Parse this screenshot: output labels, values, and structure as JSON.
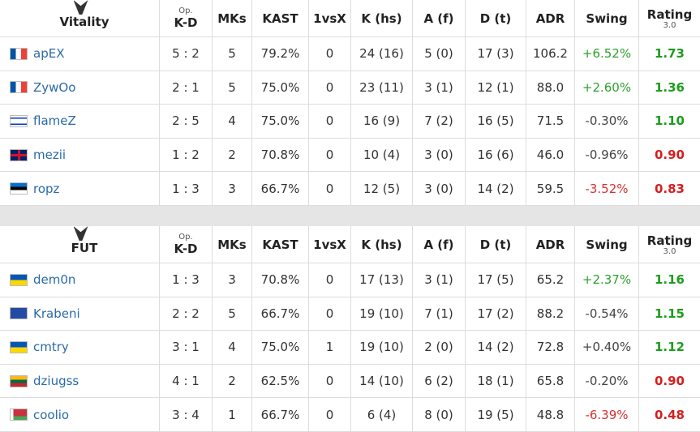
{
  "tables": [
    {
      "team": "Vitality",
      "columns": [
        {
          "label": "K-D",
          "note": "Op."
        },
        {
          "label": "MKs"
        },
        {
          "label": "KAST"
        },
        {
          "label": "1vsX"
        },
        {
          "label": "K (hs)"
        },
        {
          "label": "A (f)"
        },
        {
          "label": "D (t)"
        },
        {
          "label": "ADR"
        },
        {
          "label": "Swing"
        },
        {
          "label": "Rating",
          "note": "3.0"
        }
      ],
      "rows": [
        {
          "player": "apEX",
          "cells": [
            "5 : 2",
            "5",
            "79.2%",
            "0",
            "24 (16)",
            "5 (0)",
            "17 (3)",
            "106.2",
            "+6.52%",
            "1.73"
          ],
          "swing_color": "#2ea12e",
          "rating_color": "#1e9c1e"
        },
        {
          "player": "ZywOo",
          "cells": [
            "2 : 1",
            "5",
            "75.0%",
            "0",
            "23 (11)",
            "3 (1)",
            "12 (1)",
            "88.0",
            "+2.60%",
            "1.36"
          ],
          "swing_color": "#2ea12e",
          "rating_color": "#1e9c1e"
        },
        {
          "player": "flameZ",
          "cells": [
            "2 : 5",
            "4",
            "75.0%",
            "0",
            "16 (9)",
            "7 (2)",
            "16 (5)",
            "71.5",
            "-0.30%",
            "1.10"
          ],
          "swing_color": "#444",
          "rating_color": "#1e9c1e"
        },
        {
          "player": "mezii",
          "cells": [
            "1 : 2",
            "2",
            "70.8%",
            "0",
            "10 (4)",
            "3 (0)",
            "16 (6)",
            "46.0",
            "-0.96%",
            "0.90"
          ],
          "swing_color": "#444",
          "rating_color": "#d61f1f"
        },
        {
          "player": "ropz",
          "cells": [
            "1 : 3",
            "3",
            "66.7%",
            "0",
            "12 (5)",
            "3 (0)",
            "14 (2)",
            "59.5",
            "-3.52%",
            "0.83"
          ],
          "swing_color": "#d93030",
          "rating_color": "#d61f1f"
        }
      ]
    },
    {
      "team": "FUT",
      "columns": [
        {
          "label": "K-D",
          "note": "Op."
        },
        {
          "label": "MKs"
        },
        {
          "label": "KAST"
        },
        {
          "label": "1vsX"
        },
        {
          "label": "K (hs)"
        },
        {
          "label": "A (f)"
        },
        {
          "label": "D (t)"
        },
        {
          "label": "ADR"
        },
        {
          "label": "Swing"
        },
        {
          "label": "Rating",
          "note": "3.0"
        }
      ],
      "rows": [
        {
          "player": "dem0n",
          "cells": [
            "1 : 3",
            "3",
            "70.8%",
            "0",
            "17 (13)",
            "3 (1)",
            "17 (5)",
            "65.2",
            "+2.37%",
            "1.16"
          ],
          "swing_color": "#2ea12e",
          "rating_color": "#1e9c1e"
        },
        {
          "player": "Krabeni",
          "cells": [
            "2 : 2",
            "5",
            "66.7%",
            "0",
            "19 (10)",
            "7 (1)",
            "17 (2)",
            "88.2",
            "-0.54%",
            "1.15"
          ],
          "swing_color": "#444",
          "rating_color": "#1e9c1e"
        },
        {
          "player": "cmtry",
          "cells": [
            "3 : 1",
            "4",
            "75.0%",
            "1",
            "19 (10)",
            "2 (0)",
            "14 (2)",
            "72.8",
            "+0.40%",
            "1.12"
          ],
          "swing_color": "#444",
          "rating_color": "#1e9c1e"
        },
        {
          "player": "dziugss",
          "cells": [
            "4 : 1",
            "2",
            "62.5%",
            "0",
            "14 (10)",
            "6 (2)",
            "18 (1)",
            "65.8",
            "-0.20%",
            "0.90"
          ],
          "swing_color": "#444",
          "rating_color": "#d61f1f"
        },
        {
          "player": "coolio",
          "cells": [
            "3 : 4",
            "1",
            "66.7%",
            "0",
            "6 (4)",
            "8 (0)",
            "19 (5)",
            "48.8",
            "-6.39%",
            "0.48"
          ],
          "swing_color": "#d93030",
          "rating_color": "#d61f1f"
        }
      ]
    }
  ]
}
